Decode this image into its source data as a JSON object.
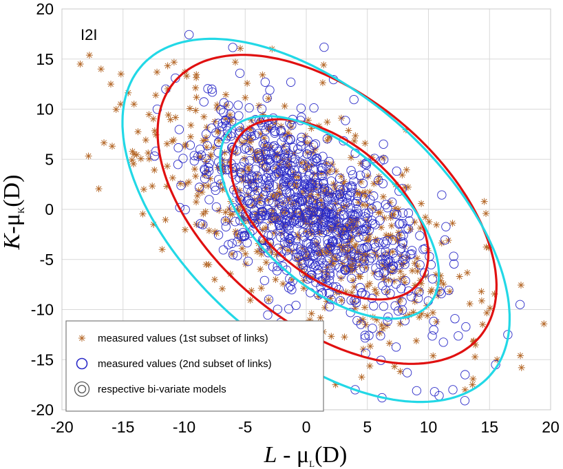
{
  "chart_data": {
    "type": "scatter",
    "panel_label": "I2I",
    "xlabel": {
      "italic": "L",
      "mid": " - μ",
      "sub": "L",
      "paren": "(D)"
    },
    "ylabel": {
      "italic": "K",
      "mid": "-μ",
      "sub": "K",
      "paren": "(D)"
    },
    "xlim": [
      -20,
      20
    ],
    "ylim": [
      -20,
      20
    ],
    "xticks": [
      -20,
      -15,
      -10,
      -5,
      0,
      5,
      10,
      15,
      20
    ],
    "yticks": [
      -20,
      -15,
      -10,
      -5,
      0,
      5,
      10,
      15,
      20
    ],
    "grid": true,
    "legend_position": "bottom-left",
    "colors": {
      "series1": "#b5692a",
      "series2": "#2a2ac8",
      "model1": "#e01010",
      "model2": "#22d8e6",
      "grid": "#d9d9d9"
    },
    "legend": [
      "measured values (1st subset of links)",
      "measured values (2nd subset of links)",
      "respective bi-variate models"
    ],
    "series": [
      {
        "name": "measured values (1st subset of links)",
        "marker": "asterisk",
        "n_points": 700,
        "generator": {
          "sd_x": 6.3,
          "sd_y": 6.3,
          "corr": -0.62,
          "seed": 11
        },
        "x": [
          -18.5,
          -16.8,
          -16.0,
          -15.2,
          -14.1,
          -13.3,
          -12.5,
          -11.8,
          -8.2,
          -7.5,
          -9.0,
          13.6,
          13.0,
          2.4,
          -2.8
        ],
        "y": [
          14.5,
          14.0,
          12.5,
          10.5,
          10.5,
          2.0,
          -1.5,
          -4.0,
          -5.5,
          -7.0,
          -1.5,
          -17.5,
          -18.0,
          -17.5,
          16.0
        ]
      },
      {
        "name": "measured values (2nd subset of links)",
        "marker": "circle",
        "n_points": 900,
        "generator": {
          "sd_x": 4.6,
          "sd_y": 5.3,
          "corr": -0.6,
          "seed": 29
        },
        "x": [
          17.5,
          16.5,
          15.5,
          13.0,
          12.0,
          10.5,
          6.2,
          4.0,
          -11.5,
          -12.2
        ],
        "y": [
          -9.5,
          -12.5,
          -15.5,
          -16.5,
          -18.0,
          -18.2,
          -18.8,
          -18.0,
          12.0,
          10.0
        ]
      }
    ],
    "models": [
      {
        "name": "1st subset model (inner)",
        "cx": 1.9,
        "cy": 0,
        "rx": 6.0,
        "ry": 10.5,
        "angle_deg": 39,
        "color": "model1"
      },
      {
        "name": "1st subset model (outer)",
        "cx": 1.7,
        "cy": 0,
        "rx": 10.3,
        "ry": 18.0,
        "angle_deg": 39,
        "color": "model1"
      },
      {
        "name": "2nd subset model (inner)",
        "cx": 1.9,
        "cy": -0.8,
        "rx": 6.2,
        "ry": 12.0,
        "angle_deg": 39,
        "color": "model2"
      },
      {
        "name": "2nd subset model (outer)",
        "cx": 0.8,
        "cy": -1.1,
        "rx": 11.4,
        "ry": 21.2,
        "angle_deg": 38,
        "color": "model2"
      }
    ]
  }
}
